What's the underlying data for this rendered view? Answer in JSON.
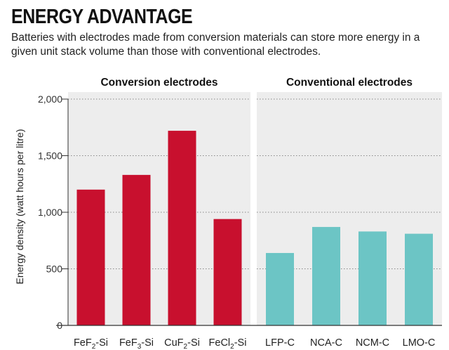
{
  "chart_data": {
    "type": "bar",
    "title": "ENERGY ADVANTAGE",
    "subtitle": "Batteries with electrodes made from conversion materials can store more energy in a given unit stack volume than those with conventional electrodes.",
    "ylabel": "Energy density (watt hours per litre)",
    "ylim": [
      0,
      2000
    ],
    "yticks": [
      0,
      500,
      1000,
      1500,
      2000
    ],
    "ytick_labels": [
      "0",
      "500",
      "1,000",
      "1,500",
      "2,000"
    ],
    "grid": true,
    "groups": [
      {
        "name": "Conversion electrodes",
        "color": "#c8102e",
        "categories": [
          {
            "label": "FeF",
            "sub": "2",
            "suffix": "-Si"
          },
          {
            "label": "FeF",
            "sub": "3",
            "suffix": "-Si"
          },
          {
            "label": "CuF",
            "sub": "2",
            "suffix": "-Si"
          },
          {
            "label": "FeCl",
            "sub": "2",
            "suffix": "-Si"
          }
        ],
        "values": [
          1200,
          1330,
          1720,
          940
        ]
      },
      {
        "name": "Conventional electrodes",
        "color": "#6cc5c5",
        "categories": [
          {
            "label": "LFP-C",
            "sub": "",
            "suffix": ""
          },
          {
            "label": "NCA-C",
            "sub": "",
            "suffix": ""
          },
          {
            "label": "NCM-C",
            "sub": "",
            "suffix": ""
          },
          {
            "label": "LMO-C",
            "sub": "",
            "suffix": ""
          }
        ],
        "values": [
          640,
          870,
          830,
          810
        ]
      }
    ]
  }
}
